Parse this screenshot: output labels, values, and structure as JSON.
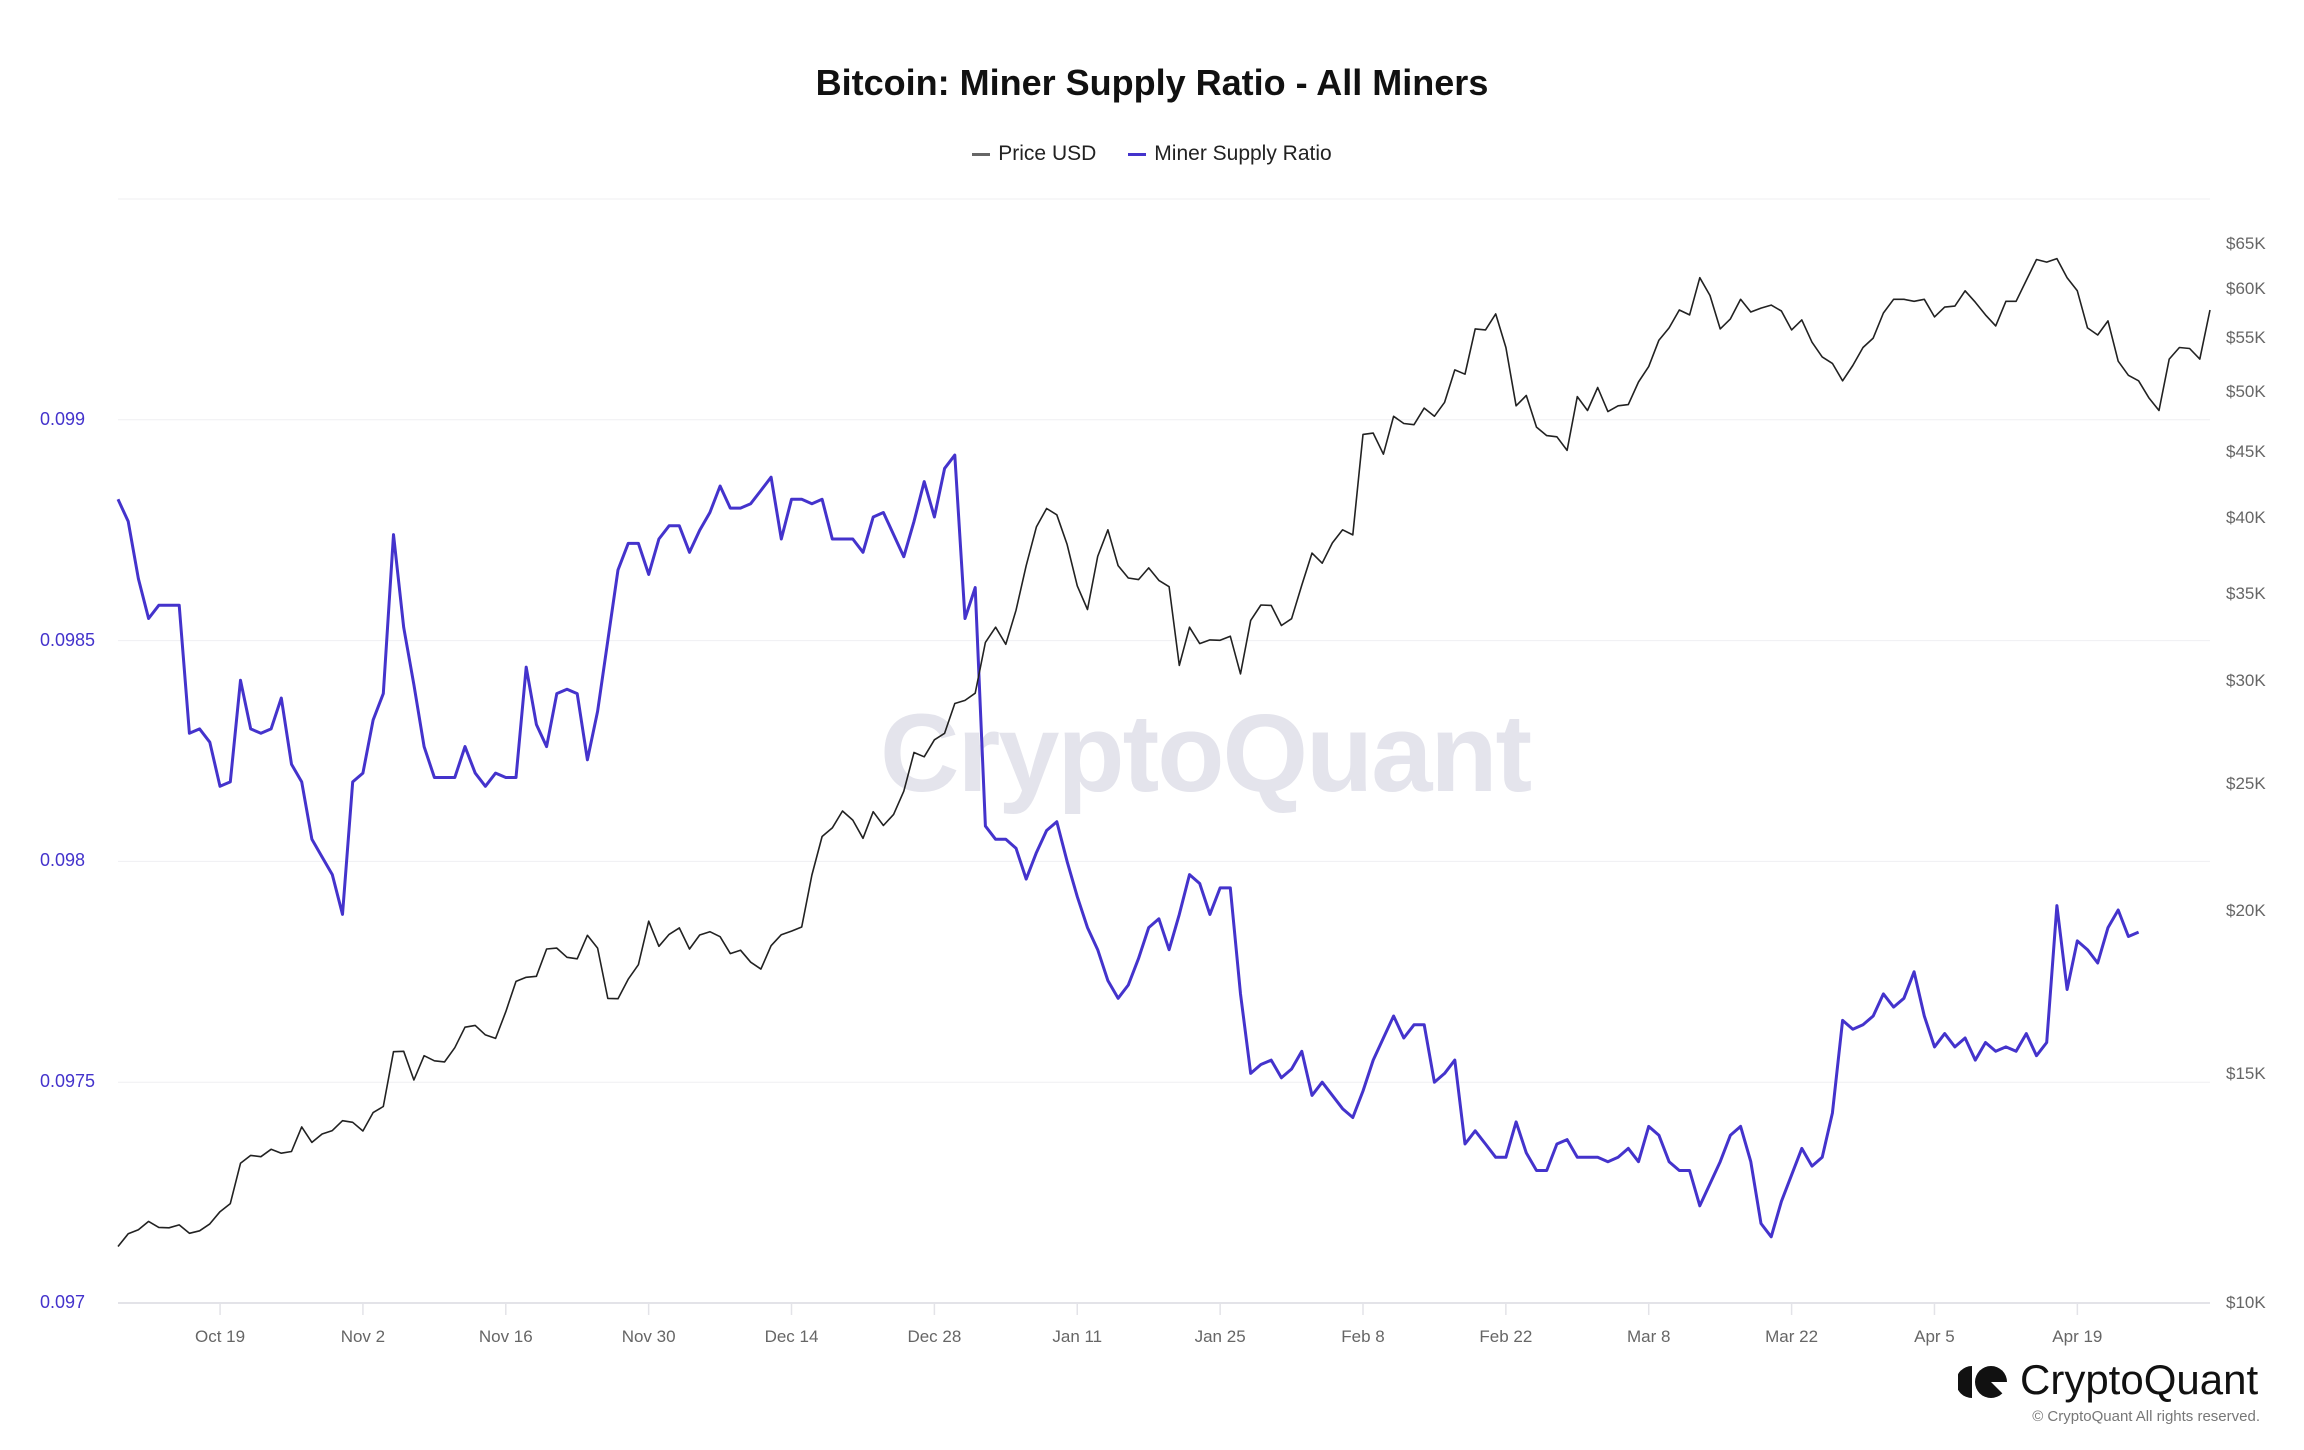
{
  "title": "Bitcoin: Miner Supply Ratio - All Miners",
  "legend": [
    {
      "label": "Price USD",
      "color": "#666666"
    },
    {
      "label": "Miner Supply Ratio",
      "color": "#4433cc"
    }
  ],
  "watermark": "CryptoQuant",
  "brand": {
    "name": "CryptoQuant",
    "copyright": "© CryptoQuant All rights reserved."
  },
  "colors": {
    "price": "#222222",
    "ratio": "#4433cc",
    "grid": "#efeff2",
    "left_axis": "#4433cc",
    "right_axis": "#666666"
  },
  "chart_data": {
    "type": "line",
    "title": "Bitcoin: Miner Supply Ratio - All Miners",
    "xlabel": "",
    "ylabel_left": "Miner Supply Ratio",
    "ylabel_right": "Price USD",
    "x_start": "2020-10-09",
    "x_end": "2021-04-30",
    "x_ticks": [
      "Oct 19",
      "Nov 2",
      "Nov 16",
      "Nov 30",
      "Dec 14",
      "Dec 28",
      "Jan 11",
      "Jan 25",
      "Feb 8",
      "Feb 22",
      "Mar 8",
      "Mar 22",
      "Apr 5",
      "Apr 19"
    ],
    "y_left_ticks": [
      "0.097",
      "0.0975",
      "0.098",
      "0.0985",
      "0.099"
    ],
    "y_left_range": [
      0.097,
      0.0995
    ],
    "y_right_ticks": [
      "$10K",
      "$15K",
      "$20K",
      "$25K",
      "$30K",
      "$35K",
      "$40K",
      "$45K",
      "$50K",
      "$55K",
      "$60K",
      "$65K"
    ],
    "y_right_scale": "log",
    "y_right_range": [
      10000,
      68000
    ],
    "legend_position": "top",
    "grid": true,
    "series": [
      {
        "name": "Price USD",
        "axis": "right",
        "values": [
          11050,
          11300,
          11380,
          11550,
          11430,
          11420,
          11480,
          11310,
          11360,
          11500,
          11750,
          11920,
          12800,
          12980,
          12950,
          13120,
          13030,
          13070,
          13650,
          13280,
          13480,
          13560,
          13800,
          13760,
          13550,
          14000,
          14150,
          15590,
          15600,
          14830,
          15480,
          15340,
          15310,
          15700,
          16280,
          16330,
          16060,
          15960,
          16730,
          17650,
          17780,
          17810,
          18690,
          18720,
          18420,
          18370,
          19150,
          18720,
          17130,
          17120,
          17720,
          18180,
          19630,
          18780,
          19180,
          19400,
          18690,
          19160,
          19270,
          19100,
          18540,
          18650,
          18260,
          18040,
          18800,
          19170,
          19290,
          19430,
          21300,
          22800,
          23150,
          23850,
          23470,
          22730,
          23820,
          23250,
          23710,
          24700,
          26450,
          26250,
          27050,
          27360,
          28840,
          29000,
          29370,
          32130,
          33000,
          32020,
          34000,
          36800,
          39400,
          40700,
          40250,
          38200,
          35500,
          34050,
          37400,
          39200,
          36800,
          36000,
          35900,
          36650,
          35850,
          35450,
          30850,
          33000,
          32060,
          32270,
          32250,
          32480,
          30390,
          33400,
          34320,
          34300,
          33100,
          33500,
          35550,
          37620,
          36950,
          38300,
          39200,
          38850,
          46400,
          46500,
          44800,
          47900,
          47300,
          47200,
          48600,
          47900,
          49100,
          52000,
          51600,
          55900,
          55800,
          57400,
          54100,
          48800,
          49700,
          47000,
          46300,
          46200,
          45100,
          49600,
          48400,
          50400,
          48300,
          48800,
          48900,
          50900,
          52300,
          54800,
          56000,
          57800,
          57300,
          61200,
          59300,
          55900,
          56900,
          58900,
          57600,
          58000,
          58300,
          57700,
          55800,
          56800,
          54600,
          53200,
          52600,
          51000,
          52400,
          54100,
          55000,
          57500,
          58900,
          58900,
          58700,
          58900,
          57100,
          58100,
          58200,
          59800,
          58600,
          57300,
          56200,
          58700,
          58700,
          60900,
          63200,
          62900,
          63300,
          61200,
          59800,
          56000,
          55300,
          56700,
          52800,
          51500,
          51000,
          49500,
          48400,
          53000,
          54100,
          54000,
          53000,
          57800
        ],
        "ylim": [
          10000,
          68000
        ]
      },
      {
        "name": "Miner Supply Ratio",
        "axis": "left",
        "values": [
          0.09882,
          0.09877,
          0.09864,
          0.09855,
          0.09858,
          0.09858,
          0.09858,
          0.09829,
          0.0983,
          0.09827,
          0.09817,
          0.09818,
          0.09841,
          0.0983,
          0.09829,
          0.0983,
          0.09837,
          0.09822,
          0.09818,
          0.09805,
          0.09801,
          0.09797,
          0.09788,
          0.09818,
          0.0982,
          0.09832,
          0.09838,
          0.09874,
          0.09853,
          0.0984,
          0.09826,
          0.09819,
          0.09819,
          0.09819,
          0.09826,
          0.0982,
          0.09817,
          0.0982,
          0.09819,
          0.09819,
          0.09844,
          0.09831,
          0.09826,
          0.09838,
          0.09839,
          0.09838,
          0.09823,
          0.09834,
          0.0985,
          0.09866,
          0.09872,
          0.09872,
          0.09865,
          0.09873,
          0.09876,
          0.09876,
          0.0987,
          0.09875,
          0.09879,
          0.09885,
          0.0988,
          0.0988,
          0.09881,
          0.09884,
          0.09887,
          0.09873,
          0.09882,
          0.09882,
          0.09881,
          0.09882,
          0.09873,
          0.09873,
          0.09873,
          0.0987,
          0.09878,
          0.09879,
          0.09874,
          0.09869,
          0.09877,
          0.09886,
          0.09878,
          0.09889,
          0.09892,
          0.09855,
          0.09862,
          0.09808,
          0.09805,
          0.09805,
          0.09803,
          0.09796,
          0.09802,
          0.09807,
          0.09809,
          0.098,
          0.09792,
          0.09785,
          0.0978,
          0.09773,
          0.09769,
          0.09772,
          0.09778,
          0.09785,
          0.09787,
          0.0978,
          0.09788,
          0.09797,
          0.09795,
          0.09788,
          0.09794,
          0.09794,
          0.0977,
          0.09752,
          0.09754,
          0.09755,
          0.09751,
          0.09753,
          0.09757,
          0.09747,
          0.0975,
          0.09747,
          0.09744,
          0.09742,
          0.09748,
          0.09755,
          0.0976,
          0.09765,
          0.0976,
          0.09763,
          0.09763,
          0.0975,
          0.09752,
          0.09755,
          0.09736,
          0.09739,
          0.09736,
          0.09733,
          0.09733,
          0.09741,
          0.09734,
          0.0973,
          0.0973,
          0.09736,
          0.09737,
          0.09733,
          0.09733,
          0.09733,
          0.09732,
          0.09733,
          0.09735,
          0.09732,
          0.0974,
          0.09738,
          0.09732,
          0.0973,
          0.0973,
          0.09722,
          0.09727,
          0.09732,
          0.09738,
          0.0974,
          0.09732,
          0.09718,
          0.09715,
          0.09723,
          0.09729,
          0.09735,
          0.09731,
          0.09733,
          0.09743,
          0.09764,
          0.09762,
          0.09763,
          0.09765,
          0.0977,
          0.09767,
          0.09769,
          0.09775,
          0.09765,
          0.09758,
          0.09761,
          0.09758,
          0.0976,
          0.09755,
          0.09759,
          0.09757,
          0.09758,
          0.09757,
          0.09761,
          0.09756,
          0.09759,
          0.0979,
          0.09771,
          0.09782,
          0.0978,
          0.09777,
          0.09785,
          0.09789,
          0.09783,
          0.09784
        ],
        "ylim": [
          0.097,
          0.0995
        ]
      }
    ]
  }
}
